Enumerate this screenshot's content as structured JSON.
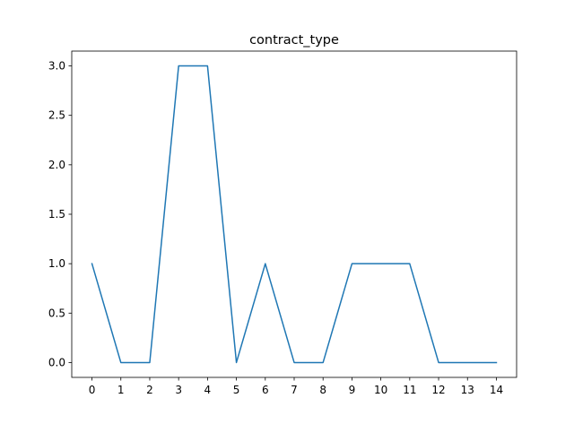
{
  "chart_data": {
    "type": "line",
    "title": "contract_type",
    "xlabel": "",
    "ylabel": "",
    "x": [
      0,
      1,
      2,
      3,
      4,
      5,
      6,
      7,
      8,
      9,
      10,
      11,
      12,
      13,
      14
    ],
    "series": [
      {
        "values": [
          1,
          0,
          0,
          3,
          3,
          0,
          1,
          0,
          0,
          1,
          1,
          1,
          0,
          0,
          0
        ],
        "color": "#1f77b4"
      }
    ],
    "xticks": [
      "0",
      "1",
      "2",
      "3",
      "4",
      "5",
      "6",
      "7",
      "8",
      "9",
      "10",
      "11",
      "12",
      "13",
      "14"
    ],
    "yticks": [
      "0.0",
      "0.5",
      "1.0",
      "1.5",
      "2.0",
      "2.5",
      "3.0"
    ],
    "xlim": [
      -0.7,
      14.7
    ],
    "ylim": [
      -0.15,
      3.15
    ],
    "grid": false,
    "legend": "none"
  }
}
